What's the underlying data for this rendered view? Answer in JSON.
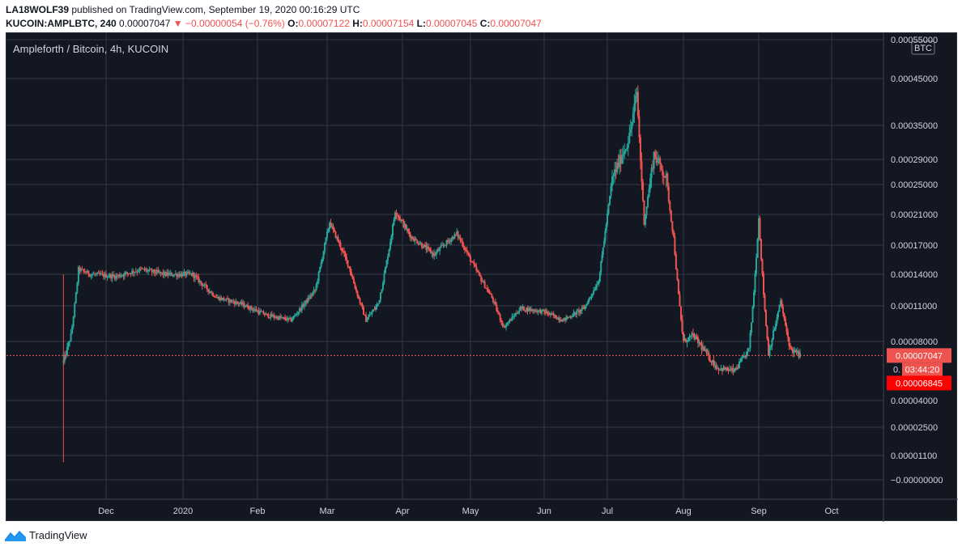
{
  "header": {
    "publisher": "LA18WOLF39",
    "published_text": "published on TradingView.com, September 19, 2020 00:16:29 UTC",
    "symbol_interval": "KUCOIN:AMPLBTC, 240",
    "last": "0.00007047",
    "change": "−0.00000054 (−0.76%)",
    "o_label": "O:",
    "o": "0.00007122",
    "h_label": "H:",
    "h": "0.00007154",
    "l_label": "L:",
    "l": "0.00007045",
    "c_label": "C:",
    "c": "0.00007047"
  },
  "chart_title": "Ampleforth / Bitcoin, 4h, KUCOIN",
  "currency_badge": "BTC",
  "price_tags": {
    "last": "0.00007047",
    "countdown": "03:44:20",
    "low": "0.00006845",
    "partial": "0."
  },
  "footer": {
    "brand": "TradingView"
  },
  "colors": {
    "background": "#131722",
    "grid": "#363a45",
    "up": "#26a69a",
    "down": "#ef5350",
    "text": "#d1d4dc",
    "last_price": "#ef5350",
    "low_tag": "#ff0000"
  },
  "chart_data": {
    "type": "candlestick",
    "title": "Ampleforth / Bitcoin, 4h, KUCOIN",
    "y_scale": "log-like (price axis)",
    "y_ticks": [
      "0.00055000",
      "0.00045000",
      "0.00035000",
      "0.00029000",
      "0.00025000",
      "0.00021000",
      "0.00017000",
      "0.00014000",
      "0.00011000",
      "0.00008000",
      "0.00004000",
      "0.00002500",
      "0.00001100",
      "−0.00000000"
    ],
    "x_ticks": [
      "Dec",
      "2020",
      "Feb",
      "Mar",
      "Apr",
      "May",
      "Jun",
      "Jul",
      "Aug",
      "Sep",
      "Oct"
    ],
    "last_price": 7.047e-05,
    "low_marker": 6.845e-05,
    "series_close": [
      {
        "date": "2019-11-14",
        "price": 6.6e-05
      },
      {
        "date": "2019-11-17",
        "price": 8.5e-05
      },
      {
        "date": "2019-11-20",
        "price": 0.000145
      },
      {
        "date": "2019-11-25",
        "price": 0.00014
      },
      {
        "date": "2019-12-05",
        "price": 0.000138
      },
      {
        "date": "2019-12-15",
        "price": 0.000145
      },
      {
        "date": "2019-12-25",
        "price": 0.00014
      },
      {
        "date": "2020-01-05",
        "price": 0.00014
      },
      {
        "date": "2020-01-15",
        "price": 0.000118
      },
      {
        "date": "2020-01-25",
        "price": 0.000112
      },
      {
        "date": "2020-02-05",
        "price": 0.000102
      },
      {
        "date": "2020-02-15",
        "price": 9.8e-05
      },
      {
        "date": "2020-02-25",
        "price": 0.000125
      },
      {
        "date": "2020-03-02",
        "price": 0.0002
      },
      {
        "date": "2020-03-10",
        "price": 0.000148
      },
      {
        "date": "2020-03-17",
        "price": 9.8e-05
      },
      {
        "date": "2020-03-22",
        "price": 0.000112
      },
      {
        "date": "2020-03-27",
        "price": 0.000175
      },
      {
        "date": "2020-03-29",
        "price": 0.000215
      },
      {
        "date": "2020-04-05",
        "price": 0.00018
      },
      {
        "date": "2020-04-15",
        "price": 0.00016
      },
      {
        "date": "2020-04-25",
        "price": 0.000185
      },
      {
        "date": "2020-05-01",
        "price": 0.000155
      },
      {
        "date": "2020-05-10",
        "price": 0.000118
      },
      {
        "date": "2020-05-15",
        "price": 9.2e-05
      },
      {
        "date": "2020-05-22",
        "price": 0.000108
      },
      {
        "date": "2020-06-01",
        "price": 0.000105
      },
      {
        "date": "2020-06-10",
        "price": 9.8e-05
      },
      {
        "date": "2020-06-20",
        "price": 0.000108
      },
      {
        "date": "2020-06-27",
        "price": 0.000135
      },
      {
        "date": "2020-07-03",
        "price": 0.00026
      },
      {
        "date": "2020-07-10",
        "price": 0.00033
      },
      {
        "date": "2020-07-13",
        "price": 0.00042
      },
      {
        "date": "2020-07-16",
        "price": 0.0002
      },
      {
        "date": "2020-07-20",
        "price": 0.0003
      },
      {
        "date": "2020-07-25",
        "price": 0.00026
      },
      {
        "date": "2020-07-28",
        "price": 0.00018
      },
      {
        "date": "2020-08-01",
        "price": 8e-05
      },
      {
        "date": "2020-08-05",
        "price": 8.5e-05
      },
      {
        "date": "2020-08-15",
        "price": 6.2e-05
      },
      {
        "date": "2020-08-22",
        "price": 6e-05
      },
      {
        "date": "2020-08-28",
        "price": 7.5e-05
      },
      {
        "date": "2020-09-01",
        "price": 0.000205
      },
      {
        "date": "2020-09-05",
        "price": 7.2e-05
      },
      {
        "date": "2020-09-10",
        "price": 0.000115
      },
      {
        "date": "2020-09-14",
        "price": 7.5e-05
      },
      {
        "date": "2020-09-18",
        "price": 7.047e-05
      }
    ]
  }
}
